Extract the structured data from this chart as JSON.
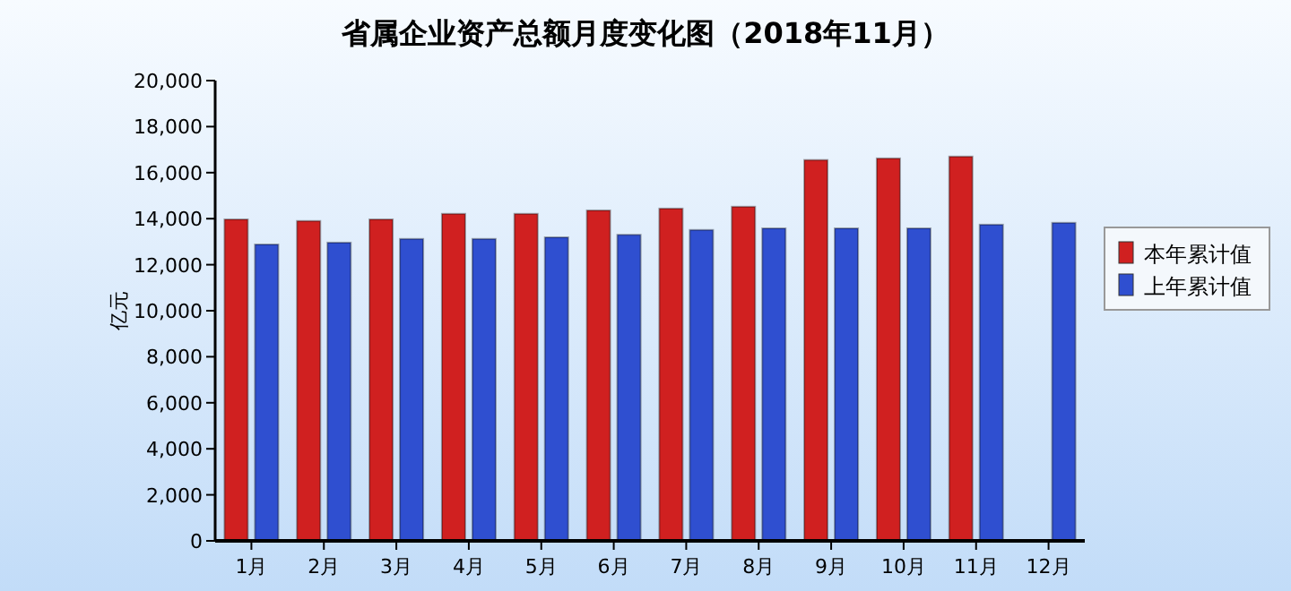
{
  "chart_data": {
    "type": "bar",
    "title": "省属企业资产总额月度变化图（2018年11月）",
    "ylabel": "亿元",
    "categories": [
      "1月",
      "2月",
      "3月",
      "4月",
      "5月",
      "6月",
      "7月",
      "8月",
      "9月",
      "10月",
      "11月",
      "12月"
    ],
    "series": [
      {
        "name": "本年累计值",
        "color": "#d02020",
        "values": [
          13970,
          13900,
          13970,
          14210,
          14210,
          14360,
          14440,
          14520,
          16550,
          16620,
          16700,
          null
        ]
      },
      {
        "name": "上年累计值",
        "color": "#2f4fd0",
        "values": [
          12880,
          12960,
          13120,
          13120,
          13190,
          13300,
          13510,
          13580,
          13580,
          13580,
          13740,
          13820
        ]
      }
    ],
    "ylim": [
      0,
      20000
    ],
    "yticks": [
      {
        "value": 0,
        "label": "0"
      },
      {
        "value": 2000,
        "label": "2,000"
      },
      {
        "value": 4000,
        "label": "4,000"
      },
      {
        "value": 6000,
        "label": "6,000"
      },
      {
        "value": 8000,
        "label": "8,000"
      },
      {
        "value": 10000,
        "label": "10,000"
      },
      {
        "value": 12000,
        "label": "12,000"
      },
      {
        "value": 14000,
        "label": "14,000"
      },
      {
        "value": 16000,
        "label": "16,000"
      },
      {
        "value": 18000,
        "label": "18,000"
      },
      {
        "value": 20000,
        "label": "20,000"
      }
    ],
    "grid": false,
    "legend": "right"
  }
}
